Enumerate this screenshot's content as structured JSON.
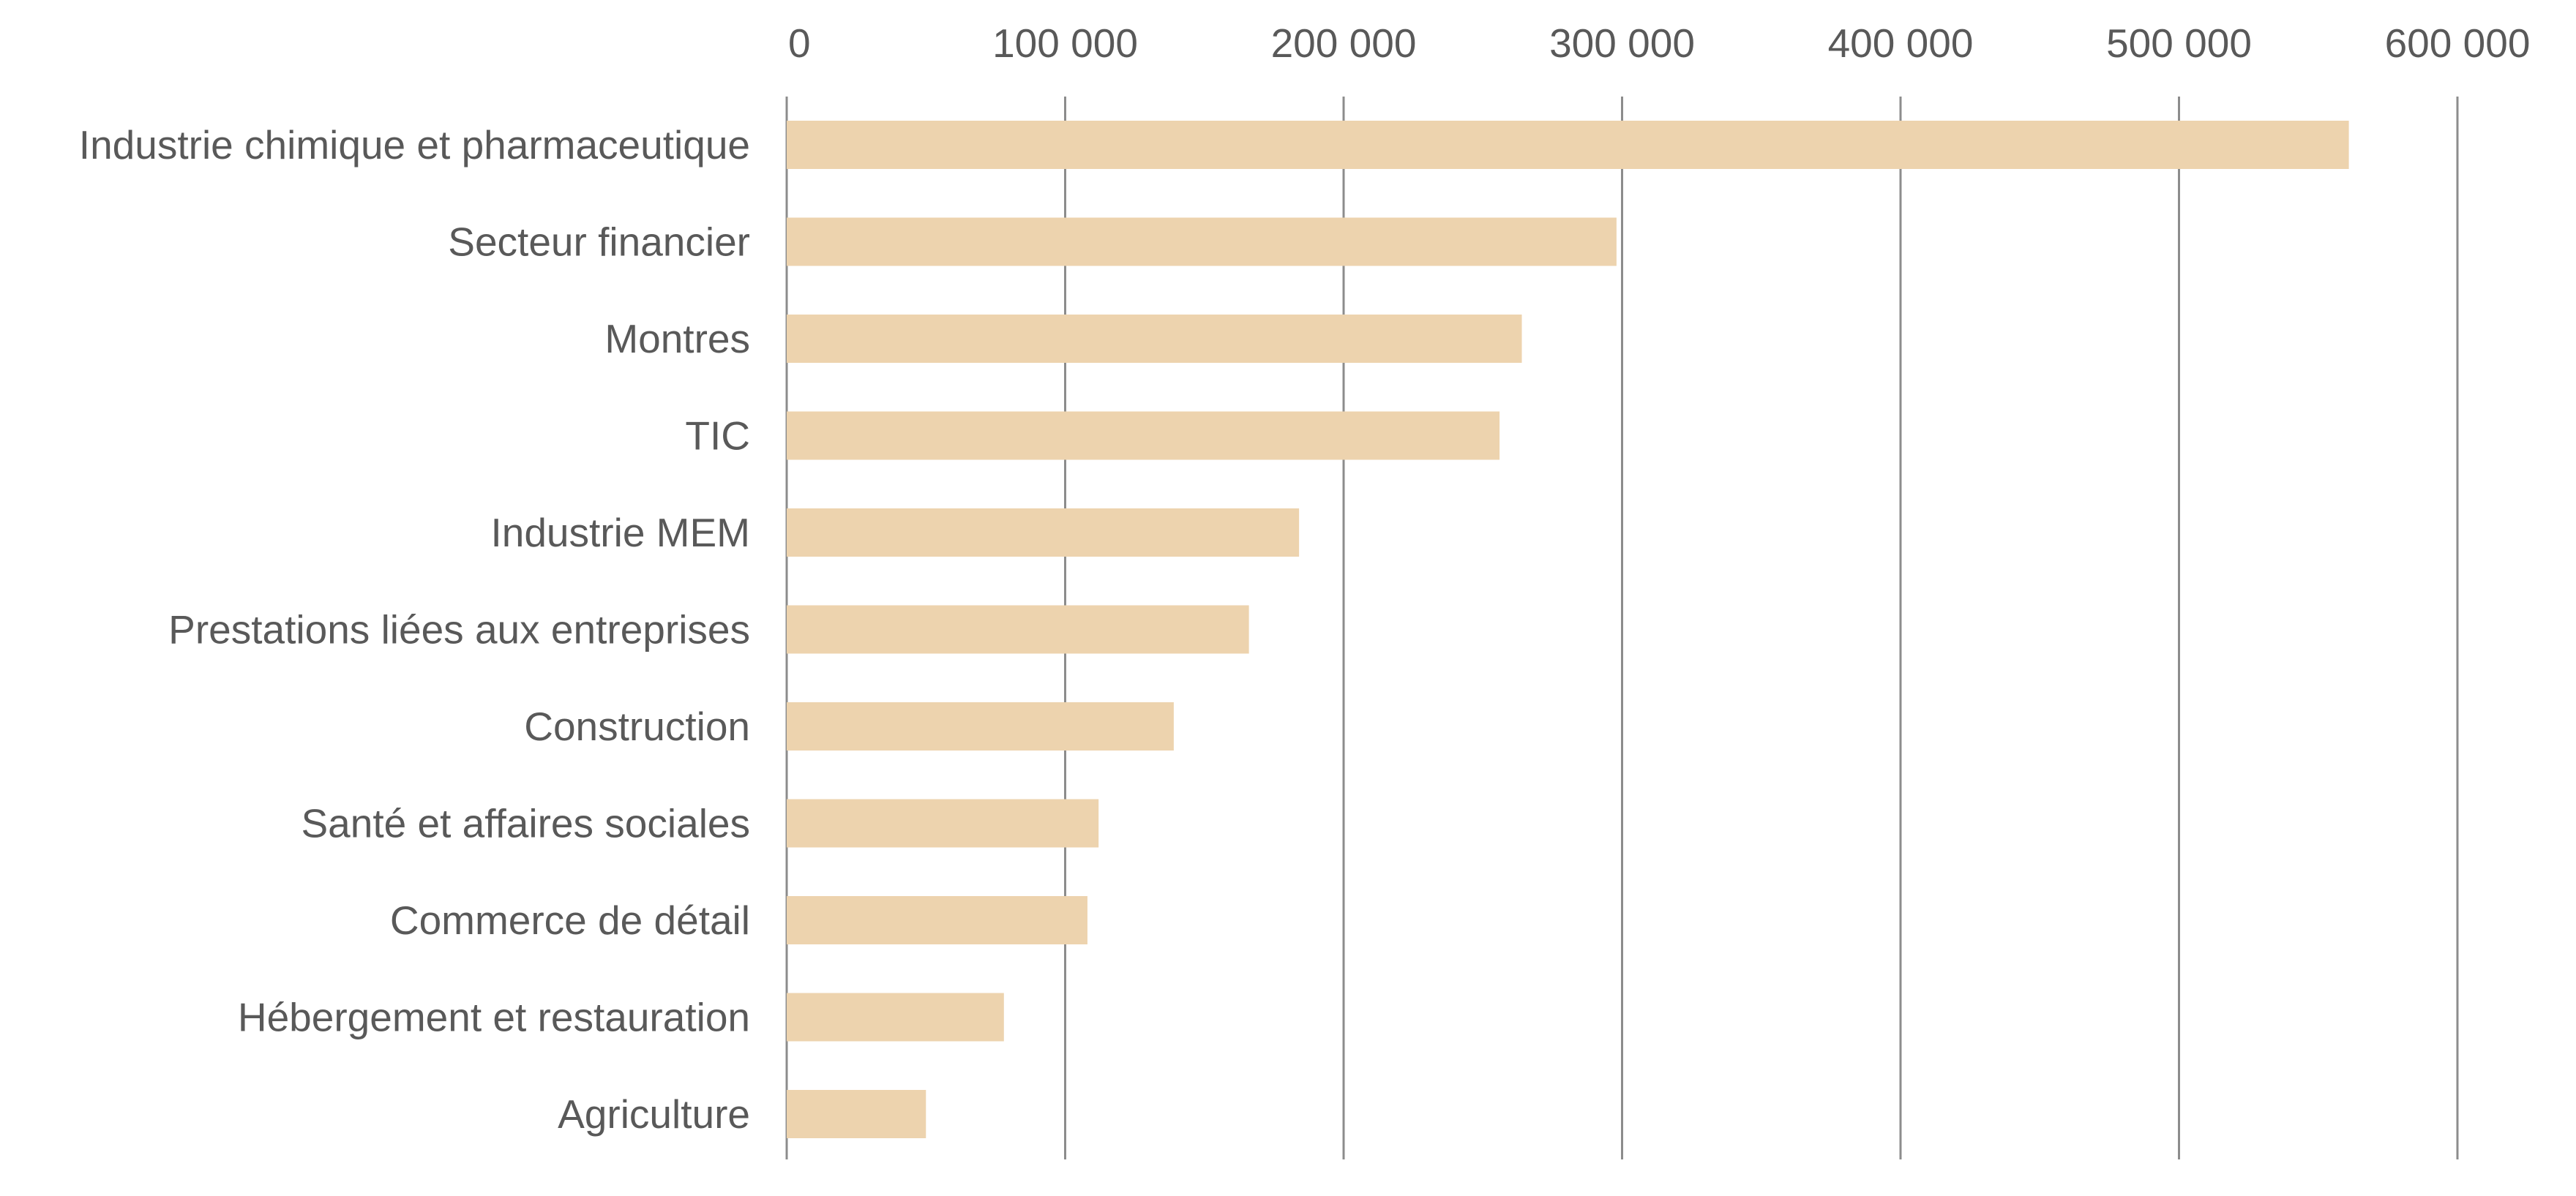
{
  "chart_data": {
    "type": "bar",
    "orientation": "horizontal",
    "categories": [
      "Industrie chimique et pharmaceutique",
      "Secteur financier",
      "Montres",
      "TIC",
      "Industrie MEM",
      "Prestations liées aux entreprises",
      "Construction",
      "Santé et affaires sociales",
      "Commerce de détail",
      "Hébergement et restauration",
      "Agriculture"
    ],
    "values": [
      561000,
      298000,
      264000,
      256000,
      184000,
      166000,
      139000,
      112000,
      108000,
      78000,
      50000
    ],
    "xlim": [
      0,
      600000
    ],
    "x_ticks": [
      0,
      100000,
      200000,
      300000,
      400000,
      500000,
      600000
    ],
    "x_tick_labels": [
      "0",
      "100 000",
      "200 000",
      "300 000",
      "400 000",
      "500 000",
      "600 000"
    ],
    "x_axis_position": "top",
    "grid": "vertical",
    "legend": "none",
    "bar_color": "#edd3ae",
    "grid_color": "#8c8c8c",
    "text_color": "#595959"
  }
}
